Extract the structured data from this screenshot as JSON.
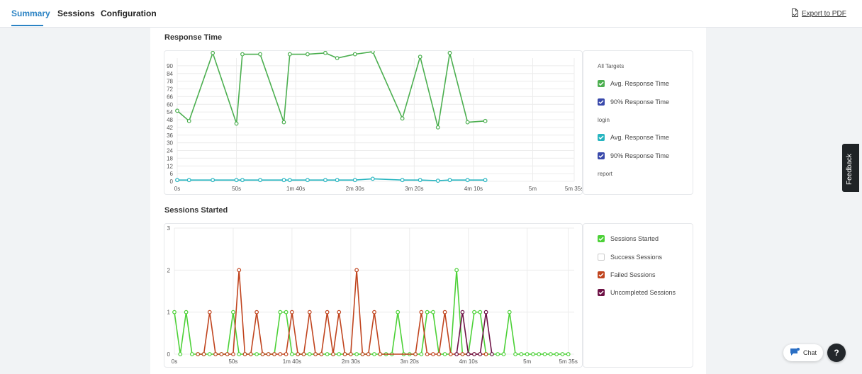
{
  "tabs": [
    {
      "label": "Summary",
      "active": true
    },
    {
      "label": "Sessions",
      "active": false
    },
    {
      "label": "Configuration",
      "active": false
    }
  ],
  "export_label": "Export to PDF",
  "feedback_label": "Feedback",
  "chat_label": "Chat",
  "help_label": "?",
  "colors": {
    "accent": "#2b83c4",
    "avg_all": "#4caf50",
    "p90": "#3949ab",
    "avg_login": "#26b5c0",
    "sessions_started": "#4cd137",
    "failed": "#c0441e",
    "uncompleted": "#6d1145"
  },
  "response_time": {
    "title": "Response Time",
    "legend": {
      "groups": [
        {
          "label": "All Targets",
          "items": [
            {
              "label": "Avg. Response Time",
              "color": "#4caf50",
              "checked": true
            },
            {
              "label": "90% Response Time",
              "color": "#3949ab",
              "checked": true
            }
          ]
        },
        {
          "label": "login",
          "items": [
            {
              "label": "Avg. Response Time",
              "color": "#26b5c0",
              "checked": true
            },
            {
              "label": "90% Response Time",
              "color": "#3949ab",
              "checked": true
            }
          ]
        },
        {
          "label": "report",
          "items": []
        }
      ]
    }
  },
  "sessions": {
    "title": "Sessions Started",
    "legend": [
      {
        "label": "Sessions Started",
        "color": "#4cd137",
        "checked": true
      },
      {
        "label": "Success Sessions",
        "color": "#ffffff",
        "checked": false
      },
      {
        "label": "Failed Sessions",
        "color": "#c0441e",
        "checked": true
      },
      {
        "label": "Uncompleted Sessions",
        "color": "#6d1145",
        "checked": true
      }
    ]
  },
  "chart_data": [
    {
      "type": "line",
      "title": "Response Time",
      "xlim": [
        0,
        335
      ],
      "ylim": [
        0,
        96
      ],
      "y_ticks": [
        0,
        6,
        12,
        18,
        24,
        30,
        36,
        42,
        48,
        54,
        60,
        66,
        72,
        78,
        84,
        90
      ],
      "x_ticks": [
        {
          "v": 0,
          "label": "0s"
        },
        {
          "v": 50,
          "label": "50s"
        },
        {
          "v": 100,
          "label": "1m 40s"
        },
        {
          "v": 150,
          "label": "2m 30s"
        },
        {
          "v": 200,
          "label": "3m 20s"
        },
        {
          "v": 250,
          "label": "4m 10s"
        },
        {
          "v": 300,
          "label": "5m"
        },
        {
          "v": 335,
          "label": "5m 35s"
        }
      ],
      "grid": true,
      "series": [
        {
          "color": "#4caf50",
          "x": [
            0,
            10,
            30,
            50,
            55,
            70,
            90,
            95,
            110,
            125,
            135,
            150,
            165,
            190,
            205,
            220,
            230,
            245,
            260
          ],
          "y": [
            55,
            47,
            100,
            45,
            99,
            99,
            46,
            99,
            99,
            100,
            96,
            99,
            101,
            49,
            97,
            42,
            100,
            46,
            47
          ]
        },
        {
          "color": "#26b5c0",
          "x": [
            0,
            10,
            30,
            50,
            55,
            70,
            90,
            95,
            110,
            125,
            135,
            150,
            165,
            190,
            205,
            220,
            230,
            245,
            260
          ],
          "y": [
            1,
            1,
            1,
            1,
            1,
            1,
            1,
            1,
            1,
            1,
            1,
            1,
            2,
            1,
            1,
            0.5,
            1,
            1,
            1
          ]
        }
      ]
    },
    {
      "type": "line",
      "title": "Sessions Started",
      "xlim": [
        0,
        340
      ],
      "ylim": [
        0,
        3
      ],
      "y_ticks": [
        0,
        1,
        2,
        3
      ],
      "x_ticks": [
        {
          "v": 0,
          "label": "0s"
        },
        {
          "v": 50,
          "label": "50s"
        },
        {
          "v": 100,
          "label": "1m 40s"
        },
        {
          "v": 150,
          "label": "2m 30s"
        },
        {
          "v": 200,
          "label": "3m 20s"
        },
        {
          "v": 250,
          "label": "4m 10s"
        },
        {
          "v": 300,
          "label": "5m"
        },
        {
          "v": 335,
          "label": "5m 35s"
        }
      ],
      "grid": true,
      "series": [
        {
          "name": "Sessions Started",
          "color": "#4cd137",
          "x": [
            0,
            5,
            10,
            15,
            20,
            25,
            30,
            35,
            40,
            45,
            50,
            55,
            60,
            65,
            70,
            75,
            80,
            85,
            90,
            95,
            100,
            105,
            110,
            115,
            120,
            125,
            130,
            135,
            140,
            145,
            150,
            155,
            160,
            165,
            170,
            175,
            180,
            185,
            190,
            195,
            200,
            205,
            210,
            215,
            220,
            225,
            230,
            235,
            240,
            245,
            250,
            255,
            260,
            265,
            270,
            275,
            280,
            285,
            290,
            295,
            300,
            305,
            310,
            315,
            320,
            325,
            330,
            335
          ],
          "y": [
            1,
            0,
            1,
            0,
            0,
            0,
            0,
            0,
            0,
            0,
            1,
            0,
            0,
            0,
            0,
            0,
            0,
            0,
            1,
            1,
            0,
            0,
            0,
            0,
            0,
            0,
            0,
            0,
            0,
            0,
            0,
            0,
            0,
            0,
            0,
            0,
            0,
            0,
            1,
            0,
            0,
            0,
            0,
            1,
            1,
            0,
            0,
            0,
            2,
            0,
            0,
            1,
            1,
            0,
            0,
            0,
            0,
            1,
            0,
            0,
            0,
            0,
            0,
            0,
            0,
            0,
            0,
            0
          ]
        },
        {
          "name": "Failed Sessions",
          "color": "#c0441e",
          "x": [
            20,
            25,
            30,
            35,
            40,
            45,
            50,
            55,
            60,
            65,
            70,
            75,
            80,
            85,
            90,
            95,
            100,
            105,
            110,
            115,
            120,
            125,
            130,
            135,
            140,
            145,
            150,
            155,
            160,
            165,
            170,
            175,
            205,
            210,
            215,
            220,
            225,
            230,
            235,
            240,
            245,
            250,
            255,
            260,
            265
          ],
          "y": [
            0,
            0,
            1,
            0,
            0,
            0,
            0,
            2,
            0,
            0,
            1,
            0,
            0,
            0,
            0,
            0,
            1,
            0,
            0,
            1,
            0,
            0,
            1,
            0,
            1,
            0,
            0,
            2,
            0,
            0,
            1,
            0,
            0,
            1,
            0,
            0,
            0,
            1,
            0,
            0,
            0,
            0,
            0,
            0,
            0
          ]
        },
        {
          "name": "Uncompleted Sessions",
          "color": "#6d1145",
          "x": [
            240,
            245,
            250,
            255,
            260,
            265,
            270
          ],
          "y": [
            0,
            1,
            0,
            0,
            0,
            1,
            0
          ]
        }
      ]
    }
  ]
}
